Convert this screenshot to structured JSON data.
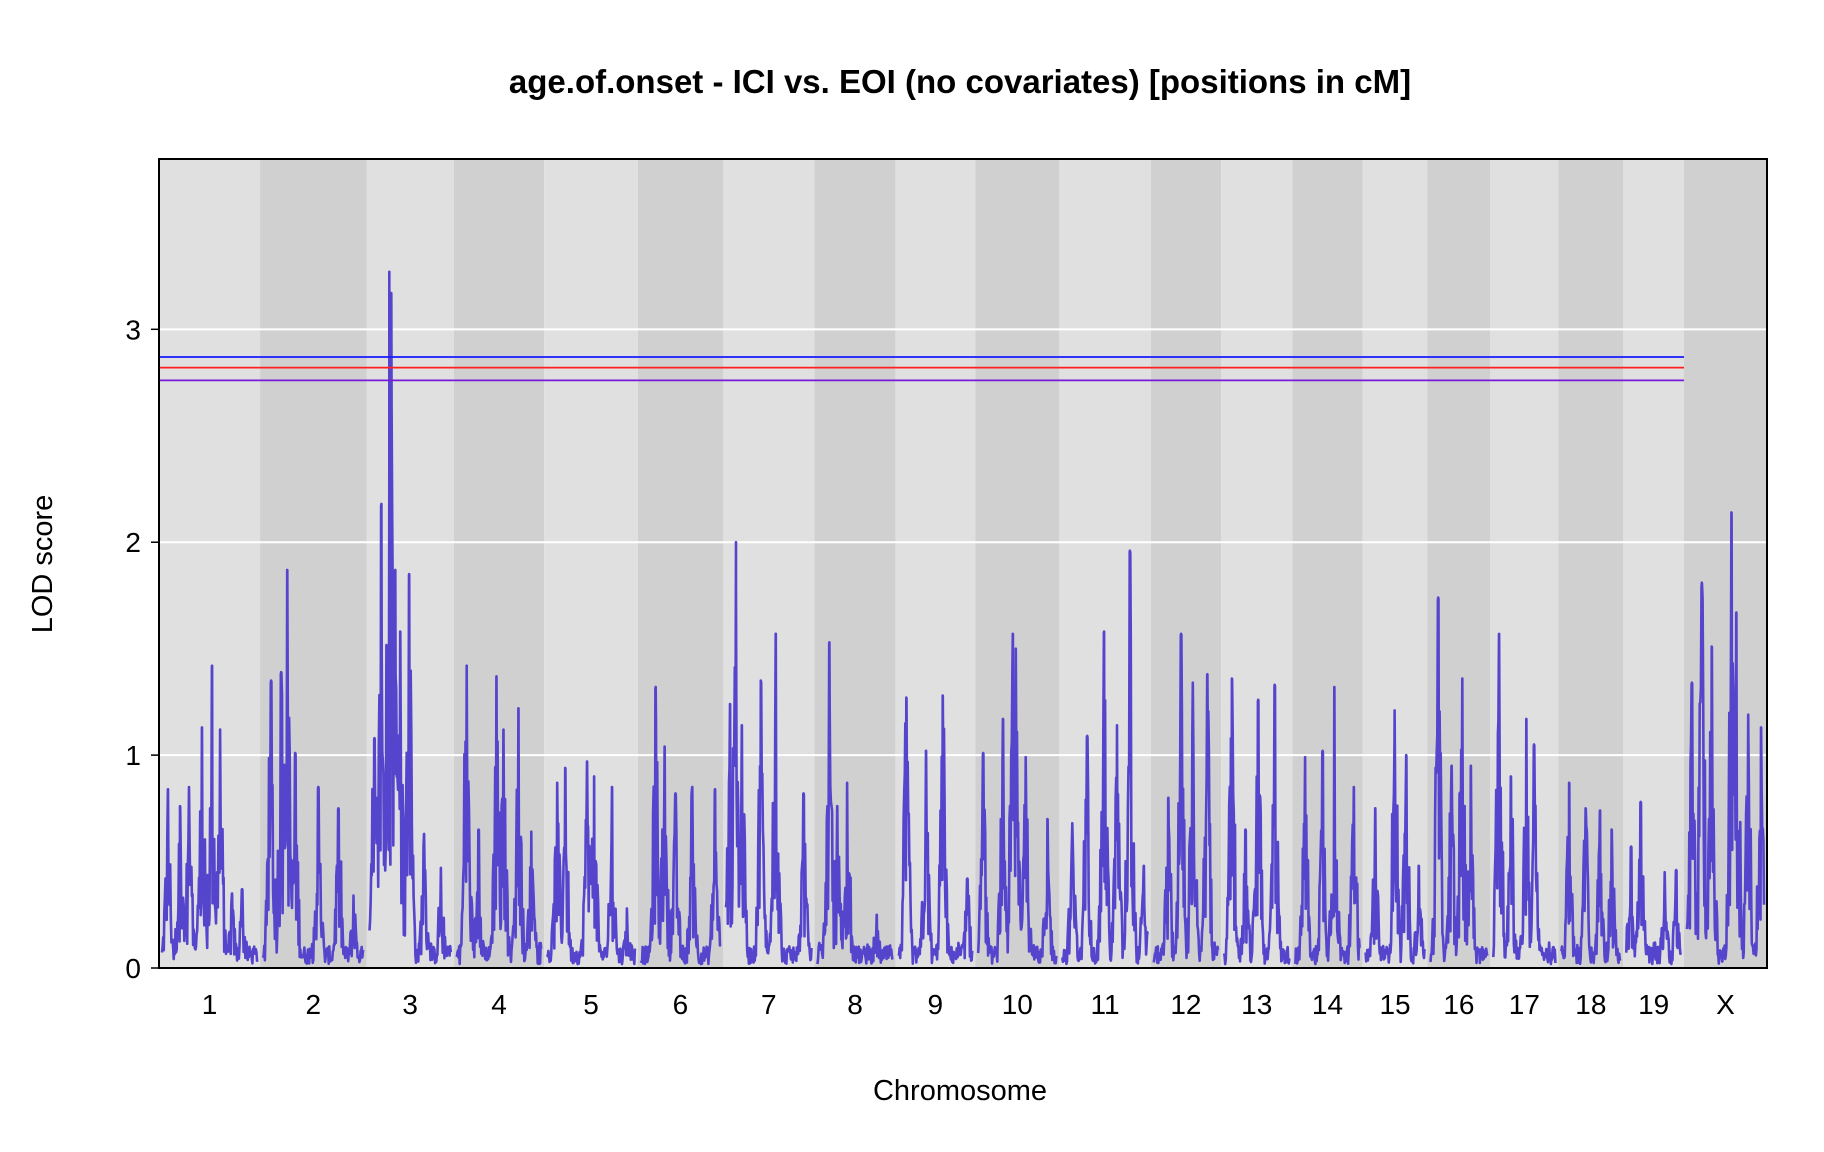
{
  "chart_data": {
    "type": "line",
    "title": "age.of.onset - ICI vs. EOI (no covariates) [positions in cM]",
    "xlabel": "Chromosome",
    "ylabel": "LOD score",
    "ylim": [
      0,
      3.8
    ],
    "yticks": [
      0,
      1,
      2,
      3
    ],
    "grid": true,
    "legend": "none",
    "colors": {
      "background": "#ffffff",
      "panel_light": "#e0e0e0",
      "panel_dark": "#d0d0d0",
      "gridline": "#ffffff",
      "series": "#5544cc",
      "threshold_blue": "#1a1aff",
      "threshold_red": "#ff2020",
      "threshold_purple": "#7a1ad6"
    },
    "chromosomes": [
      {
        "label": "1",
        "length": 95
      },
      {
        "label": "2",
        "length": 100
      },
      {
        "label": "3",
        "length": 82
      },
      {
        "label": "4",
        "length": 85
      },
      {
        "label": "5",
        "length": 88
      },
      {
        "label": "6",
        "length": 80
      },
      {
        "label": "7",
        "length": 86
      },
      {
        "label": "8",
        "length": 76
      },
      {
        "label": "9",
        "length": 75
      },
      {
        "label": "10",
        "length": 79
      },
      {
        "label": "11",
        "length": 86
      },
      {
        "label": "12",
        "length": 66
      },
      {
        "label": "13",
        "length": 67
      },
      {
        "label": "14",
        "length": 66
      },
      {
        "label": "15",
        "length": 61
      },
      {
        "label": "16",
        "length": 59
      },
      {
        "label": "17",
        "length": 64
      },
      {
        "label": "18",
        "length": 61
      },
      {
        "label": "19",
        "length": 57
      },
      {
        "label": "X",
        "length": 78
      }
    ],
    "thresholds": [
      {
        "value": 2.87,
        "color": "#1a1aff"
      },
      {
        "value": 2.82,
        "color": "#ff2020"
      },
      {
        "value": 2.76,
        "color": "#7a1ad6"
      }
    ],
    "peaks": [
      {
        "chr": "1",
        "pos": 6,
        "lod": 0.84
      },
      {
        "chr": "1",
        "pos": 18,
        "lod": 0.76
      },
      {
        "chr": "1",
        "pos": 27,
        "lod": 0.85
      },
      {
        "chr": "1",
        "pos": 40,
        "lod": 1.13
      },
      {
        "chr": "1",
        "pos": 50,
        "lod": 1.42
      },
      {
        "chr": "1",
        "pos": 58,
        "lod": 1.12
      },
      {
        "chr": "1",
        "pos": 70,
        "lod": 0.35
      },
      {
        "chr": "1",
        "pos": 80,
        "lod": 0.37
      },
      {
        "chr": "2",
        "pos": 8,
        "lod": 1.35
      },
      {
        "chr": "2",
        "pos": 18,
        "lod": 1.39
      },
      {
        "chr": "2",
        "pos": 24,
        "lod": 1.87
      },
      {
        "chr": "2",
        "pos": 32,
        "lod": 1.01
      },
      {
        "chr": "2",
        "pos": 55,
        "lod": 0.85
      },
      {
        "chr": "2",
        "pos": 75,
        "lod": 0.75
      },
      {
        "chr": "2",
        "pos": 90,
        "lod": 0.34
      },
      {
        "chr": "3",
        "pos": 5,
        "lod": 1.08
      },
      {
        "chr": "3",
        "pos": 12,
        "lod": 2.18
      },
      {
        "chr": "3",
        "pos": 20,
        "lod": 3.27
      },
      {
        "chr": "3",
        "pos": 22,
        "lod": 3.17
      },
      {
        "chr": "3",
        "pos": 26,
        "lod": 1.87
      },
      {
        "chr": "3",
        "pos": 31,
        "lod": 1.58
      },
      {
        "chr": "3",
        "pos": 40,
        "lod": 1.85
      },
      {
        "chr": "3",
        "pos": 55,
        "lod": 0.63
      },
      {
        "chr": "3",
        "pos": 72,
        "lod": 0.47
      },
      {
        "chr": "4",
        "pos": 10,
        "lod": 1.42
      },
      {
        "chr": "4",
        "pos": 22,
        "lod": 0.65
      },
      {
        "chr": "4",
        "pos": 40,
        "lod": 1.37
      },
      {
        "chr": "4",
        "pos": 47,
        "lod": 1.12
      },
      {
        "chr": "4",
        "pos": 62,
        "lod": 1.22
      },
      {
        "chr": "4",
        "pos": 75,
        "lod": 0.64
      },
      {
        "chr": "5",
        "pos": 10,
        "lod": 0.87
      },
      {
        "chr": "5",
        "pos": 18,
        "lod": 0.94
      },
      {
        "chr": "5",
        "pos": 40,
        "lod": 0.97
      },
      {
        "chr": "5",
        "pos": 47,
        "lod": 0.9
      },
      {
        "chr": "5",
        "pos": 65,
        "lod": 0.85
      },
      {
        "chr": "5",
        "pos": 80,
        "lod": 0.28
      },
      {
        "chr": "6",
        "pos": 15,
        "lod": 1.32
      },
      {
        "chr": "6",
        "pos": 24,
        "lod": 1.04
      },
      {
        "chr": "6",
        "pos": 35,
        "lod": 0.82
      },
      {
        "chr": "6",
        "pos": 52,
        "lod": 0.85
      },
      {
        "chr": "6",
        "pos": 75,
        "lod": 0.84
      },
      {
        "chr": "7",
        "pos": 4,
        "lod": 1.24
      },
      {
        "chr": "7",
        "pos": 10,
        "lod": 2.0
      },
      {
        "chr": "7",
        "pos": 16,
        "lod": 1.14
      },
      {
        "chr": "7",
        "pos": 35,
        "lod": 1.35
      },
      {
        "chr": "7",
        "pos": 50,
        "lod": 1.57
      },
      {
        "chr": "7",
        "pos": 78,
        "lod": 0.82
      },
      {
        "chr": "8",
        "pos": 12,
        "lod": 1.53
      },
      {
        "chr": "8",
        "pos": 20,
        "lod": 0.76
      },
      {
        "chr": "8",
        "pos": 30,
        "lod": 0.87
      },
      {
        "chr": "8",
        "pos": 60,
        "lod": 0.25
      },
      {
        "chr": "9",
        "pos": 8,
        "lod": 1.27
      },
      {
        "chr": "9",
        "pos": 28,
        "lod": 1.02
      },
      {
        "chr": "9",
        "pos": 45,
        "lod": 1.28
      },
      {
        "chr": "9",
        "pos": 70,
        "lod": 0.42
      },
      {
        "chr": "10",
        "pos": 5,
        "lod": 1.01
      },
      {
        "chr": "10",
        "pos": 25,
        "lod": 1.17
      },
      {
        "chr": "10",
        "pos": 35,
        "lod": 1.57
      },
      {
        "chr": "10",
        "pos": 38,
        "lod": 1.5
      },
      {
        "chr": "10",
        "pos": 48,
        "lod": 0.99
      },
      {
        "chr": "10",
        "pos": 70,
        "lod": 0.7
      },
      {
        "chr": "11",
        "pos": 10,
        "lod": 0.68
      },
      {
        "chr": "11",
        "pos": 25,
        "lod": 1.09
      },
      {
        "chr": "11",
        "pos": 42,
        "lod": 1.58
      },
      {
        "chr": "11",
        "pos": 55,
        "lod": 1.14
      },
      {
        "chr": "11",
        "pos": 68,
        "lod": 1.96
      },
      {
        "chr": "11",
        "pos": 82,
        "lod": 0.48
      },
      {
        "chr": "12",
        "pos": 15,
        "lod": 0.8
      },
      {
        "chr": "12",
        "pos": 28,
        "lod": 1.57
      },
      {
        "chr": "12",
        "pos": 40,
        "lod": 1.34
      },
      {
        "chr": "12",
        "pos": 55,
        "lod": 1.38
      },
      {
        "chr": "13",
        "pos": 8,
        "lod": 1.36
      },
      {
        "chr": "13",
        "pos": 22,
        "lod": 0.65
      },
      {
        "chr": "13",
        "pos": 35,
        "lod": 1.26
      },
      {
        "chr": "13",
        "pos": 52,
        "lod": 1.33
      },
      {
        "chr": "14",
        "pos": 10,
        "lod": 0.99
      },
      {
        "chr": "14",
        "pos": 28,
        "lod": 1.02
      },
      {
        "chr": "14",
        "pos": 40,
        "lod": 1.32
      },
      {
        "chr": "14",
        "pos": 60,
        "lod": 0.85
      },
      {
        "chr": "15",
        "pos": 10,
        "lod": 0.75
      },
      {
        "chr": "15",
        "pos": 30,
        "lod": 1.21
      },
      {
        "chr": "15",
        "pos": 42,
        "lod": 1.0
      },
      {
        "chr": "15",
        "pos": 55,
        "lod": 0.48
      },
      {
        "chr": "16",
        "pos": 8,
        "lod": 1.74
      },
      {
        "chr": "16",
        "pos": 22,
        "lod": 0.95
      },
      {
        "chr": "16",
        "pos": 33,
        "lod": 1.36
      },
      {
        "chr": "16",
        "pos": 42,
        "lod": 0.95
      },
      {
        "chr": "17",
        "pos": 6,
        "lod": 1.57
      },
      {
        "chr": "17",
        "pos": 18,
        "lod": 0.9
      },
      {
        "chr": "17",
        "pos": 34,
        "lod": 1.17
      },
      {
        "chr": "17",
        "pos": 42,
        "lod": 1.05
      },
      {
        "chr": "18",
        "pos": 8,
        "lod": 0.87
      },
      {
        "chr": "18",
        "pos": 25,
        "lod": 0.75
      },
      {
        "chr": "18",
        "pos": 40,
        "lod": 0.74
      },
      {
        "chr": "18",
        "pos": 52,
        "lod": 0.65
      },
      {
        "chr": "19",
        "pos": 5,
        "lod": 0.57
      },
      {
        "chr": "19",
        "pos": 15,
        "lod": 0.78
      },
      {
        "chr": "19",
        "pos": 40,
        "lod": 0.45
      },
      {
        "chr": "19",
        "pos": 52,
        "lod": 0.46
      },
      {
        "chr": "X",
        "pos": 5,
        "lod": 1.34
      },
      {
        "chr": "X",
        "pos": 15,
        "lod": 1.81
      },
      {
        "chr": "X",
        "pos": 25,
        "lod": 1.51
      },
      {
        "chr": "X",
        "pos": 45,
        "lod": 2.14
      },
      {
        "chr": "X",
        "pos": 50,
        "lod": 1.67
      },
      {
        "chr": "X",
        "pos": 62,
        "lod": 1.19
      },
      {
        "chr": "X",
        "pos": 75,
        "lod": 1.13
      }
    ]
  }
}
